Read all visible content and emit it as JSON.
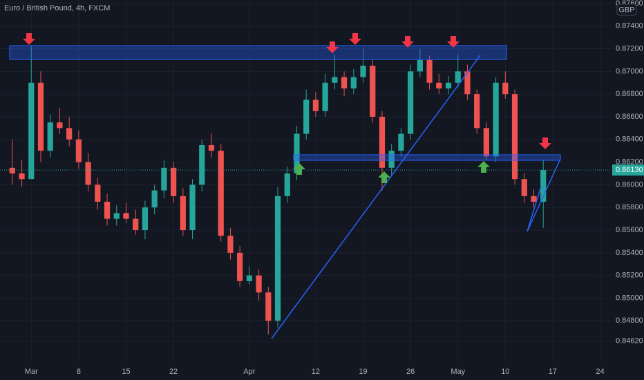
{
  "chart_data": {
    "type": "candlestick",
    "title": "Euro / British Pound, 4h, FXCM",
    "currency": "GBP",
    "up_color": "#26a69a",
    "down_color": "#ef5350",
    "candles": {
      "open": [
        0.8615,
        0.861,
        0.8605,
        0.869,
        0.863,
        0.8655,
        0.865,
        0.864,
        0.862,
        0.86,
        0.8585,
        0.857,
        0.8575,
        0.857,
        0.856,
        0.858,
        0.8595,
        0.8615,
        0.859,
        0.856,
        0.86,
        0.8635,
        0.863,
        0.8555,
        0.854,
        0.8515,
        0.852,
        0.8505,
        0.848,
        0.859,
        0.861,
        0.8645,
        0.8675,
        0.8665,
        0.869,
        0.8695,
        0.8685,
        0.8695,
        0.8705,
        0.866,
        0.8615,
        0.863,
        0.8645,
        0.87,
        0.871,
        0.869,
        0.8685,
        0.869,
        0.87,
        0.868,
        0.865,
        0.8625,
        0.869,
        0.868,
        0.8605,
        0.859,
        0.8585
      ],
      "high": [
        0.864,
        0.8622,
        0.8722,
        0.87,
        0.8662,
        0.8668,
        0.866,
        0.8648,
        0.8628,
        0.8606,
        0.8592,
        0.8582,
        0.8584,
        0.8578,
        0.8586,
        0.86,
        0.8622,
        0.862,
        0.8597,
        0.8605,
        0.864,
        0.8645,
        0.8636,
        0.8562,
        0.8546,
        0.8528,
        0.8525,
        0.851,
        0.8598,
        0.8616,
        0.8652,
        0.8684,
        0.8682,
        0.8698,
        0.8715,
        0.87,
        0.8702,
        0.872,
        0.871,
        0.8665,
        0.8636,
        0.865,
        0.8706,
        0.872,
        0.8714,
        0.8698,
        0.8696,
        0.8715,
        0.8706,
        0.8684,
        0.8655,
        0.8695,
        0.87,
        0.8684,
        0.861,
        0.8596,
        0.8622
      ],
      "low": [
        0.86,
        0.8598,
        0.864,
        0.862,
        0.8624,
        0.8645,
        0.8634,
        0.8614,
        0.8594,
        0.8578,
        0.8564,
        0.8564,
        0.8566,
        0.8556,
        0.8552,
        0.8574,
        0.8588,
        0.8584,
        0.8555,
        0.8552,
        0.8594,
        0.8624,
        0.855,
        0.8534,
        0.851,
        0.8512,
        0.8498,
        0.8468,
        0.8474,
        0.8584,
        0.8604,
        0.864,
        0.866,
        0.866,
        0.8684,
        0.8678,
        0.868,
        0.869,
        0.8655,
        0.8595,
        0.8608,
        0.8625,
        0.864,
        0.8695,
        0.8684,
        0.868,
        0.868,
        0.8686,
        0.8675,
        0.8645,
        0.8622,
        0.862,
        0.8676,
        0.86,
        0.8584,
        0.858,
        0.8562
      ],
      "close": [
        0.861,
        0.8605,
        0.869,
        0.863,
        0.8655,
        0.865,
        0.864,
        0.862,
        0.86,
        0.8585,
        0.857,
        0.8575,
        0.857,
        0.856,
        0.858,
        0.8595,
        0.8615,
        0.859,
        0.856,
        0.86,
        0.8635,
        0.863,
        0.8555,
        0.854,
        0.8515,
        0.852,
        0.8505,
        0.848,
        0.859,
        0.861,
        0.8645,
        0.8675,
        0.8665,
        0.869,
        0.8695,
        0.8685,
        0.8695,
        0.8705,
        0.866,
        0.8615,
        0.863,
        0.8645,
        0.87,
        0.871,
        0.869,
        0.8685,
        0.869,
        0.87,
        0.868,
        0.865,
        0.8625,
        0.869,
        0.868,
        0.8605,
        0.859,
        0.8585,
        0.8613
      ]
    },
    "last_price": {
      "value": 0.8613,
      "label": "0.86130"
    },
    "xlim": [
      -1.3,
      63.2
    ],
    "xticks": [
      {
        "value": 2,
        "label": "Mar"
      },
      {
        "value": 7,
        "label": "8"
      },
      {
        "value": 12,
        "label": "15"
      },
      {
        "value": 17,
        "label": "22"
      },
      {
        "value": 25,
        "label": "Apr"
      },
      {
        "value": 32,
        "label": "12"
      },
      {
        "value": 37,
        "label": "19"
      },
      {
        "value": 42,
        "label": "26"
      },
      {
        "value": 47,
        "label": "May"
      },
      {
        "value": 52,
        "label": "10"
      },
      {
        "value": 57,
        "label": "17"
      },
      {
        "value": 62,
        "label": "24"
      }
    ],
    "ylim": [
      0.8443,
      0.8763
    ],
    "yticks": [
      {
        "value": 0.876,
        "label": "0.87600"
      },
      {
        "value": 0.874,
        "label": "0.87400"
      },
      {
        "value": 0.872,
        "label": "0.87200"
      },
      {
        "value": 0.87,
        "label": "0.87000"
      },
      {
        "value": 0.868,
        "label": "0.86800"
      },
      {
        "value": 0.866,
        "label": "0.86600"
      },
      {
        "value": 0.864,
        "label": "0.86400"
      },
      {
        "value": 0.862,
        "label": "0.86200"
      },
      {
        "value": 0.86,
        "label": "0.86000"
      },
      {
        "value": 0.858,
        "label": "0.85800"
      },
      {
        "value": 0.856,
        "label": "0.85600"
      },
      {
        "value": 0.854,
        "label": "0.85400"
      },
      {
        "value": 0.852,
        "label": "0.85200"
      },
      {
        "value": 0.85,
        "label": "0.85000"
      },
      {
        "value": 0.848,
        "label": "0.84800"
      },
      {
        "value": 0.8462,
        "label": "0.84620"
      }
    ],
    "grid": true
  }
}
